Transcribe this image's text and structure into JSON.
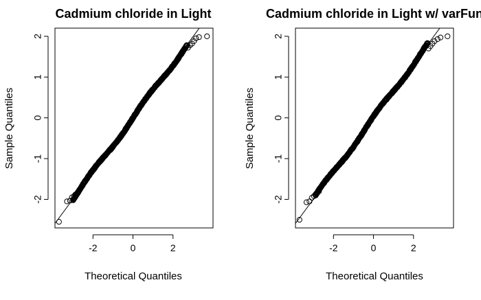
{
  "chart_data": [
    {
      "type": "scatter",
      "title": "Cadmium chloride in Light",
      "xlabel": "Theoretical Quantiles",
      "ylabel": "Sample Quantiles",
      "xlim": [
        -3.9,
        4.0
      ],
      "ylim": [
        -2.7,
        2.2
      ],
      "xticks": [
        -2,
        0,
        2
      ],
      "yticks": [
        -2,
        -1,
        0,
        1,
        2
      ],
      "grid": false,
      "reference_line": {
        "slope": 0.664,
        "intercept": 0.0
      },
      "body": {
        "x_start": -3.0,
        "x_end": 2.7
      },
      "tail_points": [
        {
          "x": -3.7,
          "y": -2.55
        },
        {
          "x": -3.3,
          "y": -2.05
        },
        {
          "x": -3.15,
          "y": -2.03
        },
        {
          "x": -3.05,
          "y": -1.95
        },
        {
          "x": -2.95,
          "y": -1.92
        },
        {
          "x": -2.88,
          "y": -1.88
        },
        {
          "x": -2.8,
          "y": -1.85
        },
        {
          "x": -2.72,
          "y": -1.82
        },
        {
          "x": 2.75,
          "y": 1.72
        },
        {
          "x": 2.85,
          "y": 1.78
        },
        {
          "x": 2.95,
          "y": 1.82
        },
        {
          "x": 3.05,
          "y": 1.88
        },
        {
          "x": 3.15,
          "y": 1.95
        },
        {
          "x": 3.3,
          "y": 1.98
        },
        {
          "x": 3.7,
          "y": 2.0
        }
      ]
    },
    {
      "type": "scatter",
      "title": "Cadmium chloride in Light w/ varFun",
      "xlabel": "Theoretical Quantiles",
      "ylabel": "Sample Quantiles",
      "xlim": [
        -3.9,
        4.0
      ],
      "ylim": [
        -2.7,
        2.2
      ],
      "xticks": [
        -2,
        0,
        2
      ],
      "yticks": [
        -2,
        -1,
        0,
        1,
        2
      ],
      "grid": false,
      "reference_line": {
        "slope": 0.664,
        "intercept": 0.0
      },
      "body": {
        "x_start": -2.9,
        "x_end": 2.7
      },
      "tail_points": [
        {
          "x": -3.7,
          "y": -2.5
        },
        {
          "x": -3.35,
          "y": -2.07
        },
        {
          "x": -3.2,
          "y": -2.05
        },
        {
          "x": -3.08,
          "y": -1.96
        },
        {
          "x": -2.98,
          "y": -1.92
        },
        {
          "x": -2.9,
          "y": -1.88
        },
        {
          "x": -2.82,
          "y": -1.84
        },
        {
          "x": -2.72,
          "y": -1.8
        },
        {
          "x": 2.75,
          "y": 1.7
        },
        {
          "x": 2.85,
          "y": 1.76
        },
        {
          "x": 2.95,
          "y": 1.82
        },
        {
          "x": 3.05,
          "y": 1.88
        },
        {
          "x": 3.2,
          "y": 1.93
        },
        {
          "x": 3.35,
          "y": 1.97
        },
        {
          "x": 3.7,
          "y": 2.0
        }
      ]
    }
  ]
}
